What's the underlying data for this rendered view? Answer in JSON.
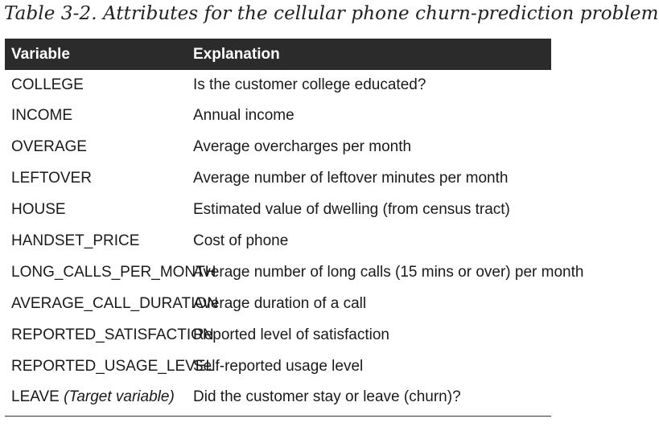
{
  "caption": "Table 3-2. Attributes for the cellular phone churn-prediction problem",
  "table": {
    "headers": {
      "variable": "Variable",
      "explanation": "Explanation"
    },
    "rows": [
      {
        "variable": "COLLEGE",
        "explanation": "Is the customer college educated?"
      },
      {
        "variable": "INCOME",
        "explanation": "Annual income"
      },
      {
        "variable": "OVERAGE",
        "explanation": "Average overcharges per month"
      },
      {
        "variable": "LEFTOVER",
        "explanation": "Average number of leftover minutes per month"
      },
      {
        "variable": "HOUSE",
        "explanation": "Estimated value of dwelling (from census tract)"
      },
      {
        "variable": "HANDSET_PRICE",
        "explanation": "Cost of phone"
      },
      {
        "variable": "LONG_CALLS_PER_MONTH",
        "explanation": "Average number of long calls (15 mins or over) per month"
      },
      {
        "variable": "AVERAGE_CALL_DURATION",
        "explanation": "Average duration of a call"
      },
      {
        "variable": "REPORTED_SATISFACTION",
        "explanation": "Reported level of satisfaction"
      },
      {
        "variable": "REPORTED_USAGE_LEVEL",
        "explanation": "Self-reported usage level"
      },
      {
        "variable": "LEAVE",
        "variable_note": "(Target variable)",
        "explanation": "Did the customer stay or leave (churn)?"
      }
    ]
  }
}
